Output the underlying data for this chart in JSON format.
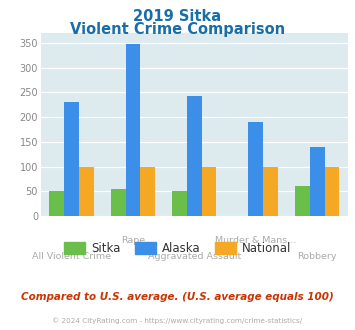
{
  "title_line1": "2019 Sitka",
  "title_line2": "Violent Crime Comparison",
  "sitka": [
    50,
    55,
    50,
    0,
    60
  ],
  "alaska": [
    230,
    348,
    242,
    190,
    140
  ],
  "national": [
    100,
    100,
    100,
    100,
    100
  ],
  "colors": {
    "sitka": "#6abf4b",
    "alaska": "#3b8fe8",
    "national": "#f5a824"
  },
  "ylim": [
    0,
    370
  ],
  "yticks": [
    0,
    50,
    100,
    150,
    200,
    250,
    300,
    350
  ],
  "bg_color": "#ddeaee",
  "title_color": "#1a6ea8",
  "label_color": "#aaaaaa",
  "subtitle_note": "Compared to U.S. average. (U.S. average equals 100)",
  "footer": "© 2024 CityRating.com - https://www.cityrating.com/crime-statistics/",
  "subtitle_color": "#cc3300",
  "footer_color": "#aaaaaa",
  "row1_labels": [
    [
      "Rape",
      1
    ],
    [
      "Murder & Mans...",
      3
    ]
  ],
  "row2_labels": [
    [
      "All Violent Crime",
      0
    ],
    [
      "Aggravated Assault",
      2
    ],
    [
      "Robbery",
      4
    ]
  ]
}
